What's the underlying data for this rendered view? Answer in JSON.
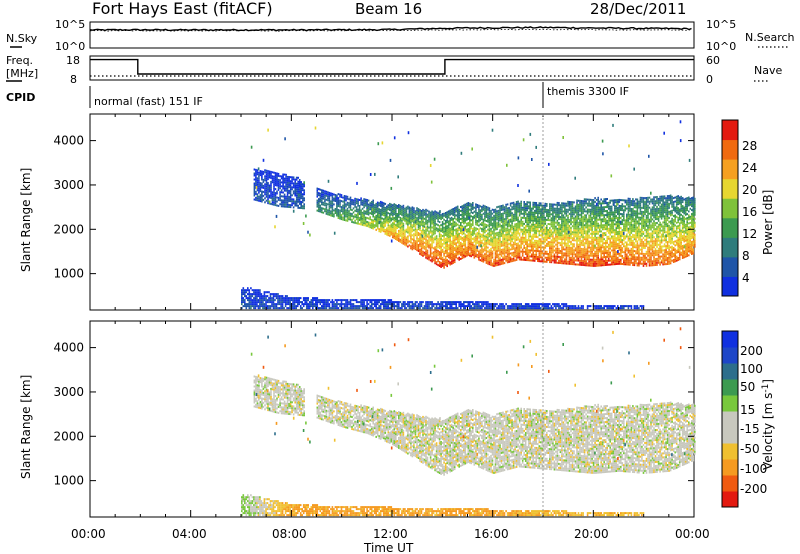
{
  "header": {
    "station": "Fort Hays East (fitACF)",
    "beam": "Beam 16",
    "date": "28/Dec/2011"
  },
  "sky_panel": {
    "left_label": "N.Sky",
    "left_ticks": [
      "10^5",
      "10^0"
    ],
    "right_ticks": [
      "10^5",
      "10^0"
    ],
    "right_label": "N.Search"
  },
  "freq_panel": {
    "left_label_1": "Freq.",
    "left_label_2": "[MHz]",
    "left_ticks": [
      "18",
      "8"
    ],
    "right_ticks": [
      "60",
      "0"
    ],
    "right_label": "Nave"
  },
  "cpid_panel": {
    "label": "CPID",
    "modes": [
      {
        "text": "normal (fast) 151 IF",
        "start_hour": 0
      },
      {
        "text": "themis 3300 IF",
        "start_hour": 18
      }
    ]
  },
  "x_axis": {
    "label": "Time UT",
    "ticks": [
      "00:00",
      "04:00",
      "08:00",
      "12:00",
      "16:00",
      "20:00",
      "00:00"
    ],
    "range_hours": [
      0,
      24
    ]
  },
  "colors": {
    "power": [
      "#1030e0",
      "#1f55a8",
      "#2f7c7c",
      "#3c9a50",
      "#7fc23a",
      "#e6d630",
      "#f5a020",
      "#f06a10",
      "#e31a10"
    ],
    "velocity": [
      "#e31a10",
      "#f05a10",
      "#f59a20",
      "#f0c030",
      "#c8c8be",
      "#c8c8be",
      "#78c83c",
      "#3c9a50",
      "#2d6e8c",
      "#1e46c8",
      "#1030e0"
    ]
  },
  "chart_data": [
    {
      "type": "line",
      "title": "Fort Hays East (fitACF) Beam 16 28/Dec/2011",
      "xlabel": "",
      "ylabel": "N.Sky",
      "y_scale": "log",
      "ylim": [
        1,
        100000
      ],
      "series": [
        {
          "name": "N.Sky",
          "x": [
            0,
            2,
            4,
            6,
            8,
            10,
            12,
            14,
            16,
            18,
            20,
            22,
            24
          ],
          "y": [
            3000,
            3200,
            3000,
            3100,
            3000,
            3200,
            3500,
            6000,
            8000,
            9000,
            7000,
            6000,
            5000
          ]
        },
        {
          "name": "N.Search",
          "x": [
            0,
            2,
            4,
            6,
            8,
            10,
            12,
            14,
            16,
            18,
            20,
            22,
            24
          ],
          "y": [
            2000,
            2100,
            2000,
            2100,
            2000,
            2200,
            2400,
            3000,
            3500,
            3500,
            3200,
            3000,
            2800
          ]
        }
      ]
    },
    {
      "type": "line",
      "xlabel": "",
      "ylabel": "Freq. [MHz]",
      "ylim": [
        8,
        18
      ],
      "y2lim": [
        0,
        60
      ],
      "series": [
        {
          "name": "Freq.",
          "x": [
            0,
            1.9,
            1.9,
            14.1,
            14.1,
            24
          ],
          "y": [
            16.5,
            16.5,
            10.5,
            10.5,
            16.5,
            16.5
          ]
        },
        {
          "name": "Nave",
          "x": [
            0,
            24
          ],
          "y": [
            10,
            10
          ]
        }
      ]
    },
    {
      "type": "heatmap",
      "ylabel": "Slant Range [km]",
      "xlabel": "Time UT",
      "xlim": [
        0,
        24
      ],
      "ylim": [
        180,
        4600
      ],
      "y_ticks": [
        1000,
        2000,
        3000,
        4000
      ],
      "colorbar_label": "Power [dB]",
      "colorbar_ticks": [
        4,
        8,
        12,
        16,
        20,
        24,
        28
      ],
      "colorbar_range": [
        0,
        30
      ],
      "echo_bands": [
        {
          "x": [
            6.5,
            7.5,
            8.5
          ],
          "range_low": [
            2650,
            2500,
            2450
          ],
          "range_high": [
            3350,
            3250,
            3100
          ],
          "power": [
            5,
            5,
            6
          ]
        },
        {
          "x": [
            9,
            10,
            11,
            12,
            13,
            14,
            15,
            16,
            17,
            18,
            19,
            20,
            21,
            22,
            23,
            24
          ],
          "range_low": [
            2400,
            2200,
            2050,
            1800,
            1450,
            1100,
            1400,
            1150,
            1300,
            1250,
            1200,
            1150,
            1200,
            1150,
            1200,
            1450
          ],
          "range_high": [
            2900,
            2750,
            2650,
            2550,
            2450,
            2350,
            2600,
            2450,
            2650,
            2550,
            2600,
            2700,
            2650,
            2700,
            2750,
            2700
          ],
          "power": [
            10,
            13,
            17,
            22,
            27,
            28,
            26,
            26,
            26,
            27,
            27,
            27,
            26,
            26,
            25,
            25
          ]
        },
        {
          "x": [
            6,
            8,
            10,
            12,
            14,
            16,
            18,
            20,
            22
          ],
          "range_low": [
            200,
            200,
            200,
            200,
            200,
            200,
            200,
            200,
            200
          ],
          "range_high": [
            700,
            450,
            400,
            380,
            380,
            330,
            300,
            280,
            280
          ],
          "power": [
            5,
            4,
            4,
            4,
            4,
            3,
            3,
            3,
            3
          ]
        }
      ]
    },
    {
      "type": "heatmap",
      "ylabel": "Slant Range [km]",
      "xlabel": "Time UT",
      "xlim": [
        0,
        24
      ],
      "ylim": [
        180,
        4600
      ],
      "y_ticks": [
        1000,
        2000,
        3000,
        4000
      ],
      "colorbar_label": "Velocity [m s^-1]",
      "colorbar_ticks": [
        200,
        100,
        50,
        15,
        -15,
        -50,
        -100,
        -200
      ],
      "colorbar_range": [
        -250,
        250
      ],
      "echo_bands": [
        {
          "x": [
            6.5,
            7.5,
            8.5
          ],
          "range_low": [
            2650,
            2500,
            2450
          ],
          "range_high": [
            3350,
            3250,
            3100
          ],
          "velocity": [
            0,
            0,
            0
          ]
        },
        {
          "x": [
            9,
            10,
            11,
            12,
            13,
            14,
            15,
            16,
            17,
            18,
            19,
            20,
            21,
            22,
            23,
            24
          ],
          "range_low": [
            2400,
            2200,
            2050,
            1800,
            1450,
            1100,
            1400,
            1150,
            1300,
            1250,
            1200,
            1150,
            1200,
            1150,
            1200,
            1450
          ],
          "range_high": [
            2900,
            2750,
            2650,
            2550,
            2450,
            2350,
            2600,
            2450,
            2650,
            2550,
            2600,
            2700,
            2650,
            2700,
            2750,
            2700
          ],
          "velocity": [
            0,
            0,
            0,
            0,
            0,
            0,
            0,
            0,
            0,
            0,
            0,
            0,
            0,
            0,
            0,
            0
          ]
        },
        {
          "x": [
            6,
            8,
            10,
            12,
            14,
            16,
            18,
            20,
            22
          ],
          "range_low": [
            200,
            200,
            200,
            200,
            200,
            200,
            200,
            200,
            200
          ],
          "range_high": [
            700,
            450,
            400,
            380,
            380,
            330,
            300,
            280,
            280
          ],
          "velocity": [
            30,
            -60,
            -60,
            -60,
            -60,
            -60,
            -40,
            -40,
            -40
          ]
        }
      ]
    }
  ],
  "panels": {
    "power": {
      "ylabel": "Slant Range [km]",
      "yticks": [
        "4000",
        "3000",
        "2000",
        "1000"
      ],
      "cbar_label": "Power [dB]",
      "cbar_ticks": [
        "28",
        "24",
        "20",
        "16",
        "12",
        "8",
        "4"
      ]
    },
    "velocity": {
      "ylabel": "Slant Range [km]",
      "yticks": [
        "4000",
        "3000",
        "2000",
        "1000"
      ],
      "cbar_label": "Velocity [m s",
      "cbar_label_sup": "-1",
      "cbar_label_end": "]",
      "cbar_ticks": [
        "200",
        "100",
        "50",
        "15",
        "-15",
        "-50",
        "-100",
        "-200"
      ]
    }
  }
}
